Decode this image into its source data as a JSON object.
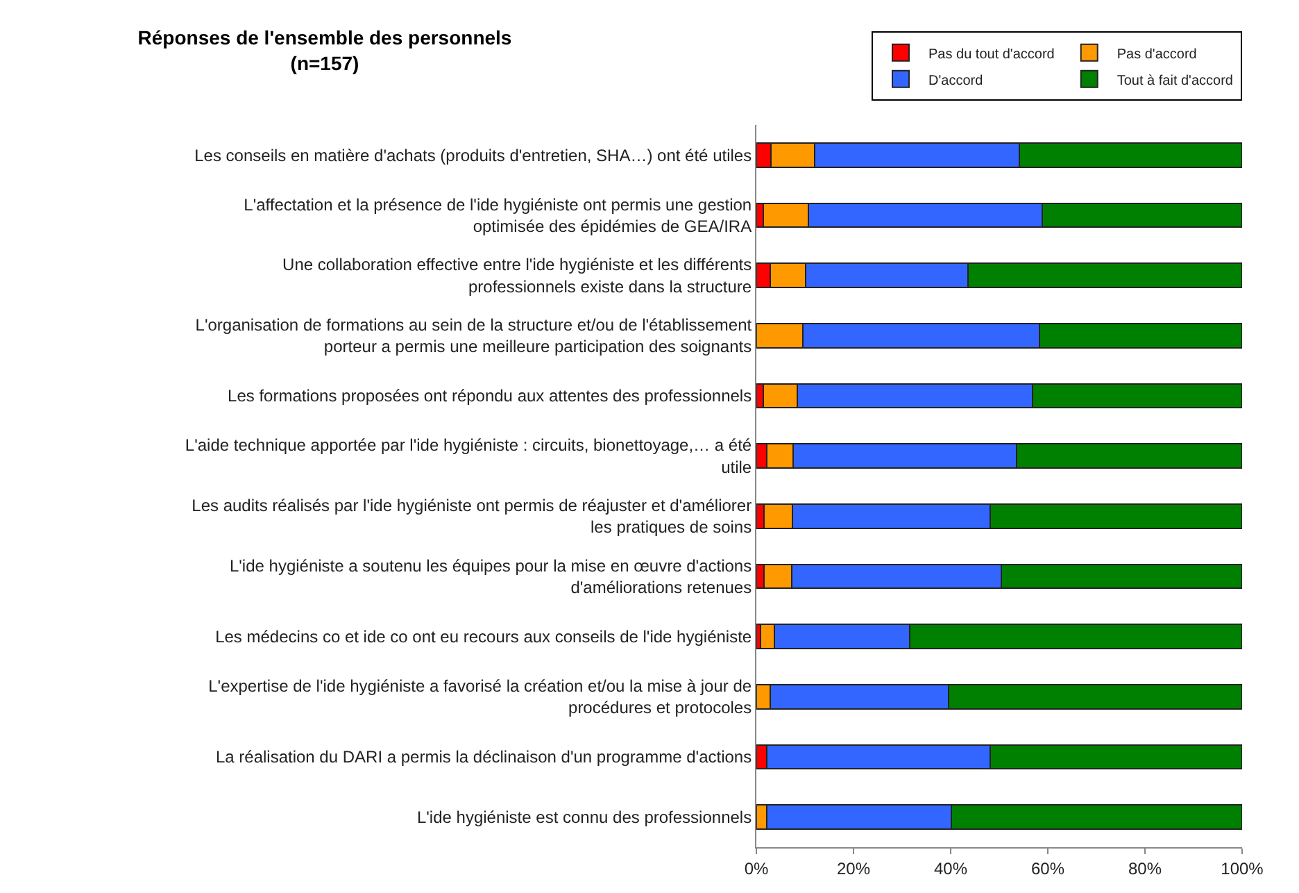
{
  "chart_data": {
    "type": "bar",
    "orientation": "horizontal",
    "stacked": true,
    "title": "Réponses de l'ensemble des personnels\n(n=157)",
    "categories": [
      "Les conseils en matière d'achats (produits d'entretien, SHA…) ont été utiles",
      "L'affectation et la présence de l'ide hygiéniste ont permis une gestion optimisée des épidémies de GEA/IRA",
      "Une collaboration effective entre l'ide hygiéniste et les différents professionnels existe dans la structure",
      "L'organisation de formations au sein de la structure et/ou de l'établissement porteur a permis une meilleure participation des soignants",
      "Les formations proposées ont répondu aux attentes des professionnels",
      "L'aide technique apportée par l'ide hygiéniste : circuits, bionettoyage,… a été utile",
      "Les audits réalisés par l'ide hygiéniste ont permis de réajuster et d'améliorer les pratiques de soins",
      "L'ide hygiéniste a soutenu les équipes pour la mise en œuvre d'actions d'améliorations retenues",
      "Les médecins co et ide co ont eu recours aux conseils de l'ide hygiéniste",
      "L'expertise de l'ide hygiéniste a favorisé la création et/ou la mise à jour de procédures et protocoles",
      "La réalisation du DARI a permis la déclinaison d'un programme d'actions",
      "L'ide hygiéniste est connu des professionnels"
    ],
    "series": [
      {
        "name": "Pas du tout d'accord",
        "color": "#ff0000",
        "values": [
          3.0,
          1.4,
          2.8,
          0,
          1.4,
          2.1,
          1.5,
          1.5,
          0.8,
          0,
          2.2,
          0
        ]
      },
      {
        "name": "Pas d'accord",
        "color": "#ff9900",
        "values": [
          9.0,
          9.3,
          7.4,
          9.5,
          7.0,
          5.5,
          5.9,
          5.8,
          2.9,
          2.9,
          0,
          2.1
        ]
      },
      {
        "name": "D'accord",
        "color": "#3366ff",
        "values": [
          42.1,
          48.1,
          33.3,
          48.8,
          48.5,
          45.9,
          40.8,
          43.1,
          27.9,
          36.7,
          46.0,
          38.1
        ]
      },
      {
        "name": "Tout à fait d'accord",
        "color": "#008000",
        "values": [
          45.9,
          41.2,
          56.5,
          41.7,
          43.1,
          46.5,
          51.8,
          49.6,
          68.4,
          60.4,
          51.8,
          59.8
        ]
      }
    ],
    "xlim": [
      0,
      100
    ],
    "xticks": [
      {
        "value": 0,
        "label": "0%"
      },
      {
        "value": 20,
        "label": "20%"
      },
      {
        "value": 40,
        "label": "40%"
      },
      {
        "value": 60,
        "label": "60%"
      },
      {
        "value": 80,
        "label": "80%"
      },
      {
        "value": 100,
        "label": "100%"
      }
    ],
    "legend": "top right"
  }
}
